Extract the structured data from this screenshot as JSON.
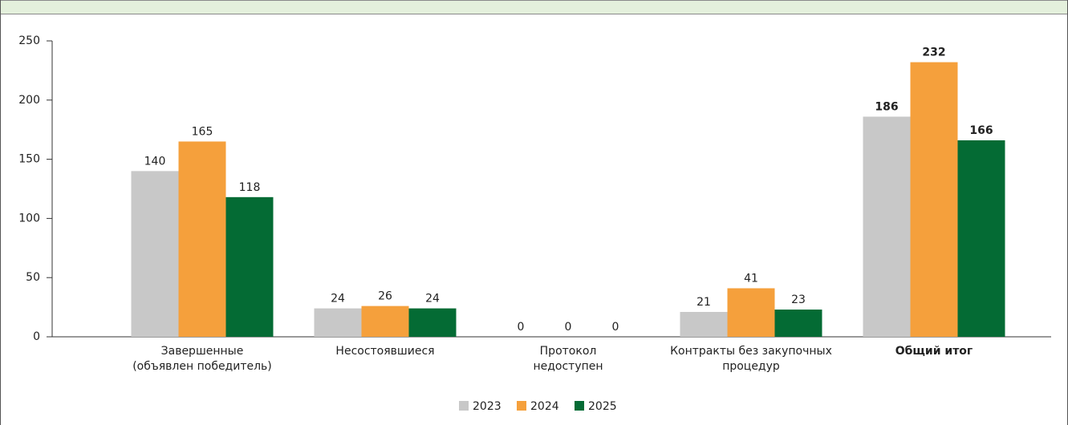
{
  "chart_data": {
    "type": "bar",
    "categories": [
      "Завершенные\n(объявлен победитель)",
      "Несостоявшиеся",
      "Протокол\nнедоступен",
      "Контракты без закупочных\nпроцедур",
      "Общий итог"
    ],
    "series": [
      {
        "name": "2023",
        "color": "#c8c8c8",
        "values": [
          140,
          24,
          0,
          21,
          186
        ]
      },
      {
        "name": "2024",
        "color": "#f5a03c",
        "values": [
          165,
          26,
          0,
          41,
          232
        ]
      },
      {
        "name": "2025",
        "color": "#046b34",
        "values": [
          118,
          24,
          0,
          23,
          166
        ]
      }
    ],
    "ylim": [
      0,
      250
    ],
    "yticks": [
      0,
      50,
      100,
      150,
      200,
      250
    ],
    "grid": false,
    "legend": "bottom"
  }
}
